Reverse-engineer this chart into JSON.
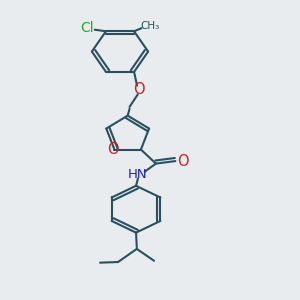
{
  "bg_color": "#e8ecee",
  "bond_color": "#2a5060",
  "cl_color": "#22aa22",
  "o_color": "#cc2222",
  "n_color": "#1a1acc",
  "lw": 1.5,
  "fs": 8.5,
  "xlim": [
    0.1,
    0.9
  ],
  "ylim": [
    0.02,
    0.98
  ]
}
